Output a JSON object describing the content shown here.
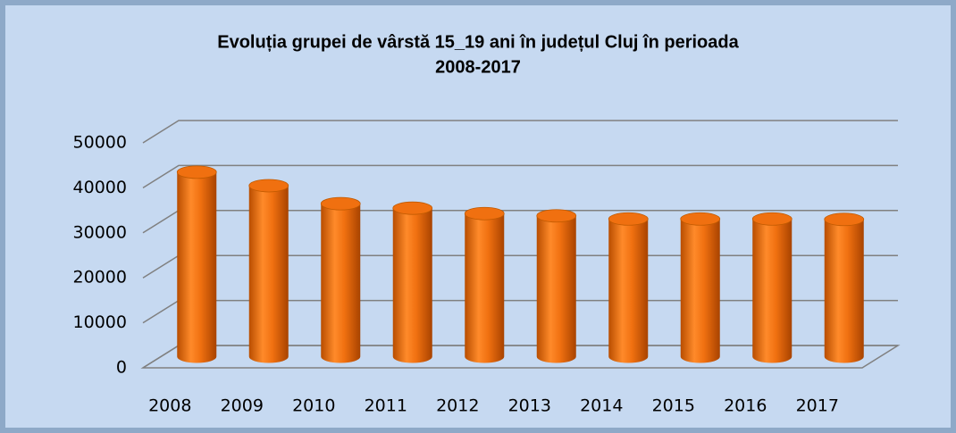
{
  "chart_data": {
    "type": "bar",
    "title_lines": [
      "Evoluția grupei de vârstă 15_19 ani în județul Cluj în perioada",
      "2008-2017"
    ],
    "categories": [
      "2008",
      "2009",
      "2010",
      "2011",
      "2012",
      "2013",
      "2014",
      "2015",
      "2016",
      "2017"
    ],
    "values": [
      41000,
      38000,
      34000,
      33000,
      31800,
      31300,
      30600,
      30600,
      30600,
      30500
    ],
    "color": "#f07010",
    "ylim": [
      0,
      50000
    ],
    "yticks": [
      0,
      10000,
      20000,
      30000,
      40000,
      50000
    ],
    "grid": true
  }
}
